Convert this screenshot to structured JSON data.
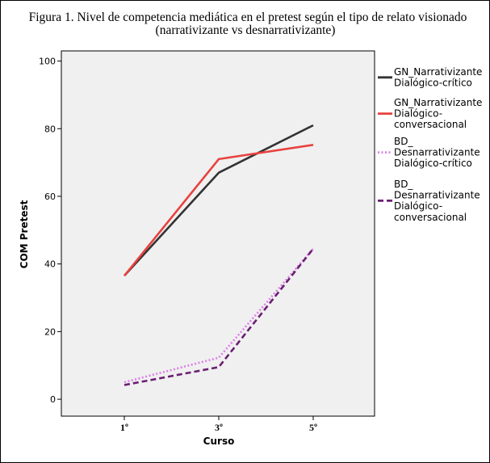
{
  "figure": {
    "title_line1": "Figura 1. Nivel de competencia mediática en el pretest según el tipo de relato visionado",
    "title_line2": "(narrativizante vs desnarrativizante)"
  },
  "chart_data": {
    "type": "line",
    "title": "Figura 1. Nivel de competencia mediática en el pretest según el tipo de relato visionado (narrativizante vs desnarrativizante)",
    "xlabel": "Curso",
    "ylabel": "COM Pretest",
    "categories": [
      "1º",
      "3º",
      "5º"
    ],
    "ylim": [
      -5,
      103
    ],
    "yticks": [
      0,
      20,
      40,
      60,
      80,
      100
    ],
    "grid": false,
    "legend_position": "right",
    "series": [
      {
        "name_lines": [
          "GN_Narrativizante",
          "Dialógico-crítico"
        ],
        "values": [
          36.5,
          67,
          81
        ],
        "color": "#333333",
        "style": "solid"
      },
      {
        "name_lines": [
          "GN_Narrativizante",
          "Dialógico-",
          "conversacional"
        ],
        "values": [
          36.5,
          71,
          75.2
        ],
        "color": "#e8423f",
        "style": "solid"
      },
      {
        "name_lines": [
          "BD_",
          "Desnarrativizante",
          "Dialógico-crítico"
        ],
        "values": [
          5,
          12.3,
          44.5
        ],
        "color": "#dc80e8",
        "style": "dotted"
      },
      {
        "name_lines": [
          "BD_",
          "Desnarrativizante",
          "Dialógico-",
          "conversacional"
        ],
        "values": [
          4.2,
          9.5,
          44.5
        ],
        "color": "#6a1f72",
        "style": "dashed"
      }
    ]
  }
}
